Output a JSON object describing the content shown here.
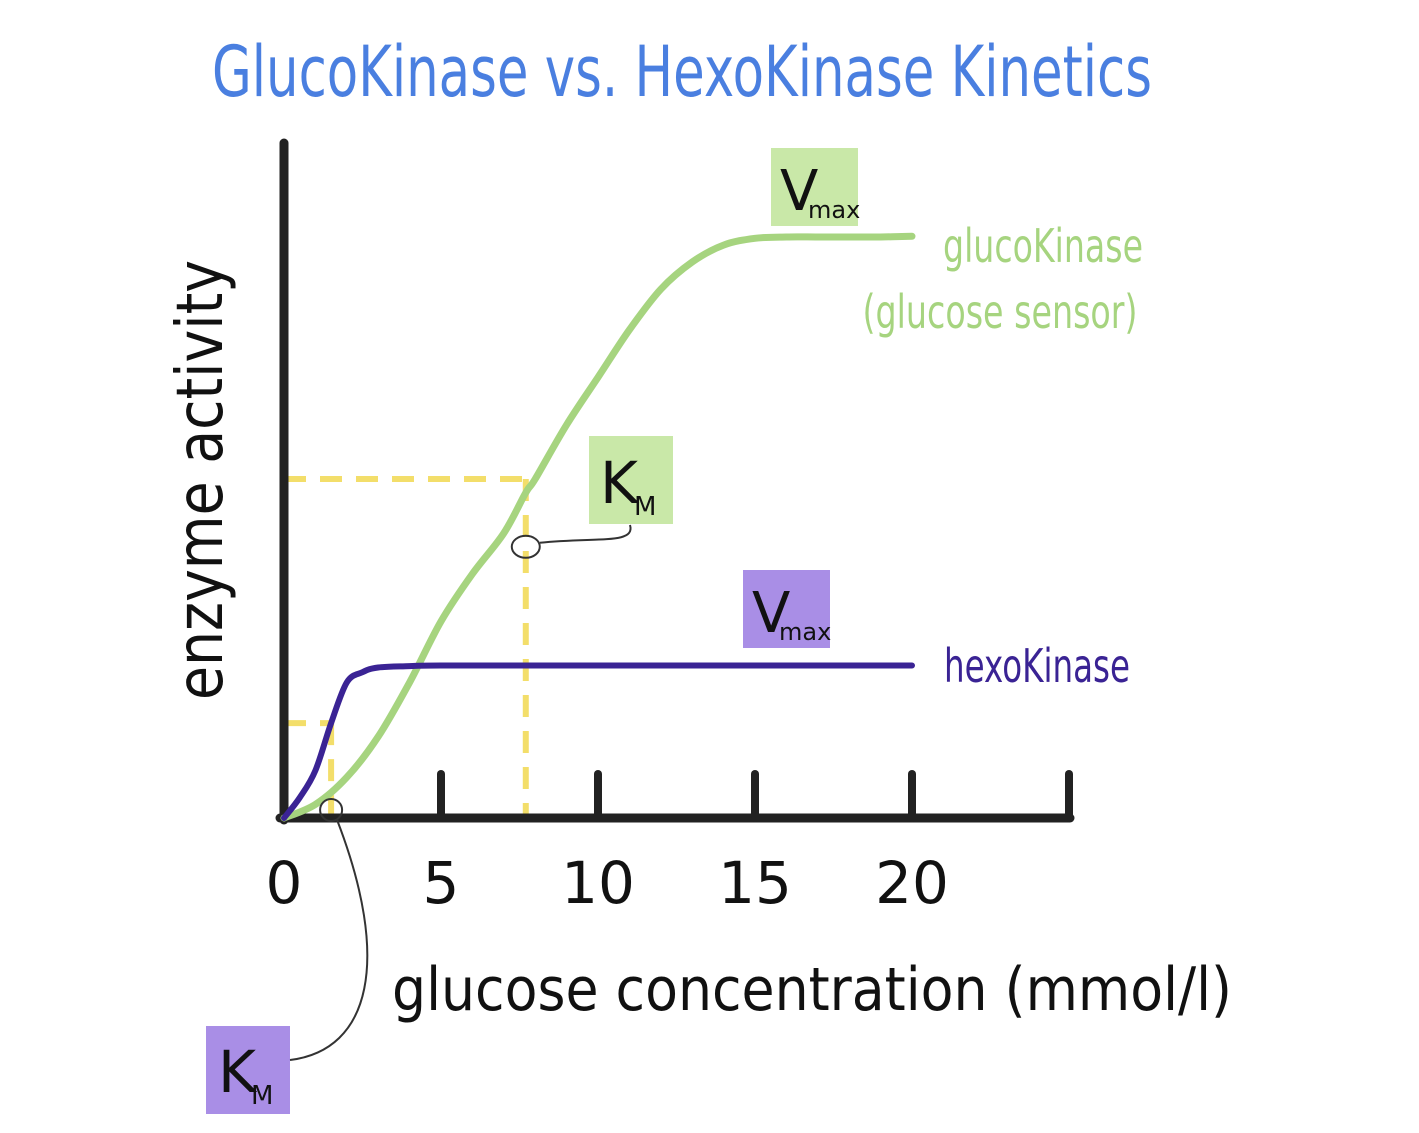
{
  "colors": {
    "title": "#4a7fe0",
    "axis": "#222222",
    "glucokinase": "#a6d47f",
    "hexokinase": "#3a2394",
    "guide": "#f3de6a",
    "green_box": "#c9e8a8",
    "purple_box": "#a98ee6",
    "text": "#111111"
  },
  "chart_data": {
    "type": "line",
    "title": "GlucoKinase vs. HexoKinase Kinetics",
    "xlabel": "glucose concentration (mmol/l)",
    "ylabel": "enzyme activity",
    "xlim": [
      0,
      25
    ],
    "ylim": [
      0,
      1.0
    ],
    "xticks": [
      5,
      10,
      15,
      20,
      25
    ],
    "xtick_labels": [
      "0",
      "5",
      "10",
      "15",
      "20"
    ],
    "grid": false,
    "series": [
      {
        "name": "glucoKinase",
        "name_line2": "(glucose sensor)",
        "key": "glucokinase",
        "vmax": 0.855,
        "km": 7.7,
        "hill": 2.5,
        "x": [
          0,
          1,
          2,
          3,
          4,
          5,
          6,
          7,
          7.7,
          8,
          9,
          10,
          11,
          12,
          13,
          14,
          15,
          16,
          17,
          18,
          19,
          20
        ],
        "y": [
          0.0,
          0.02,
          0.06,
          0.12,
          0.2,
          0.29,
          0.36,
          0.42,
          0.48,
          0.5,
          0.58,
          0.65,
          0.72,
          0.78,
          0.82,
          0.845,
          0.855,
          0.857,
          0.857,
          0.857,
          0.857,
          0.858
        ]
      },
      {
        "name": "hexoKinase",
        "key": "hexokinase",
        "vmax": 0.225,
        "km": 1.5,
        "x": [
          0,
          0.5,
          1,
          1.5,
          2,
          2.5,
          3,
          4,
          5,
          10,
          15,
          20
        ],
        "y": [
          0.0,
          0.03,
          0.07,
          0.14,
          0.2,
          0.215,
          0.222,
          0.224,
          0.225,
          0.225,
          0.225,
          0.225
        ]
      }
    ],
    "annotations": [
      {
        "key": "gk_vmax",
        "main": "V",
        "sub": "max",
        "series": "glucokinase"
      },
      {
        "key": "gk_km",
        "main": "K",
        "sub": "M",
        "series": "glucokinase"
      },
      {
        "key": "hk_vmax",
        "main": "V",
        "sub": "max",
        "series": "hexokinase"
      },
      {
        "key": "hk_km",
        "main": "K",
        "sub": "M",
        "series": "hexokinase"
      }
    ]
  }
}
